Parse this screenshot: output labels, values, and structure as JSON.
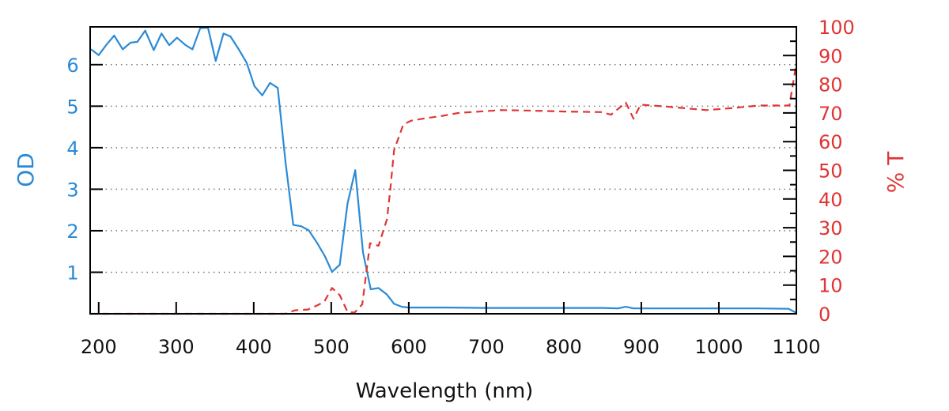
{
  "chart_data": {
    "type": "line",
    "title": "",
    "xlabel": "Wavelength (nm)",
    "ylabel": "OD",
    "y2label": "% T",
    "xlim": [
      189,
      1100
    ],
    "ylim": [
      0,
      6.91
    ],
    "y2lim": [
      0,
      100
    ],
    "x_ticks": [
      "200",
      "300",
      "400",
      "500",
      "600",
      "700",
      "800",
      "900",
      "1000",
      "1100"
    ],
    "y_ticks": [
      "1",
      "2",
      "3",
      "4",
      "5",
      "6"
    ],
    "y2_ticks": [
      "0",
      "10",
      "20",
      "30",
      "40",
      "50",
      "60",
      "70",
      "80",
      "90",
      "100"
    ],
    "grid": "dotted horizontal at OD ticks",
    "colors": {
      "od": "#2b8ad6",
      "transmission": "#e03535"
    },
    "series": [
      {
        "name": "OD",
        "axis": "left",
        "style": "solid",
        "x": [
          190,
          200,
          210,
          220,
          231,
          241,
          250,
          260,
          271,
          281,
          291,
          301,
          312,
          321,
          331,
          341,
          351,
          361,
          370,
          381,
          391,
          401,
          411,
          421,
          431,
          441,
          451,
          461,
          471,
          482,
          492,
          501,
          511,
          521,
          531,
          541,
          551,
          561,
          572,
          581,
          591,
          600,
          650,
          700,
          750,
          800,
          850,
          870,
          880,
          890,
          950,
          1000,
          1050,
          1090,
          1100
        ],
        "y": [
          6.37,
          6.23,
          6.48,
          6.7,
          6.37,
          6.53,
          6.55,
          6.82,
          6.35,
          6.75,
          6.47,
          6.65,
          6.47,
          6.37,
          6.88,
          6.89,
          6.09,
          6.75,
          6.68,
          6.36,
          6.04,
          5.48,
          5.26,
          5.56,
          5.44,
          3.66,
          2.14,
          2.11,
          2.01,
          1.7,
          1.38,
          1.01,
          1.18,
          2.65,
          3.46,
          1.48,
          0.59,
          0.62,
          0.46,
          0.24,
          0.17,
          0.15,
          0.15,
          0.14,
          0.14,
          0.14,
          0.14,
          0.13,
          0.17,
          0.13,
          0.13,
          0.13,
          0.13,
          0.12,
          0.02
        ]
      },
      {
        "name": "% T",
        "axis": "right",
        "style": "dashed",
        "x": [
          189,
          441,
          453,
          470,
          481,
          491,
          501,
          511,
          521,
          530,
          540,
          550,
          561,
          572,
          576,
          581,
          593,
          603,
          623,
          644,
          664,
          698,
          719,
          760,
          800,
          848,
          861,
          880,
          890,
          899,
          933,
          984,
          1018,
          1052,
          1091,
          1100
        ],
        "y": [
          0,
          0,
          1.2,
          1.5,
          2.8,
          4.2,
          9.0,
          6.5,
          0.7,
          0.4,
          3.3,
          24.6,
          23.7,
          33,
          43,
          57,
          66,
          67.3,
          68.2,
          69,
          70,
          70.6,
          71,
          70.8,
          70.5,
          70.3,
          69.4,
          73.6,
          68,
          72.9,
          72.2,
          71,
          71.7,
          72.6,
          72.6,
          87.3
        ]
      }
    ]
  }
}
